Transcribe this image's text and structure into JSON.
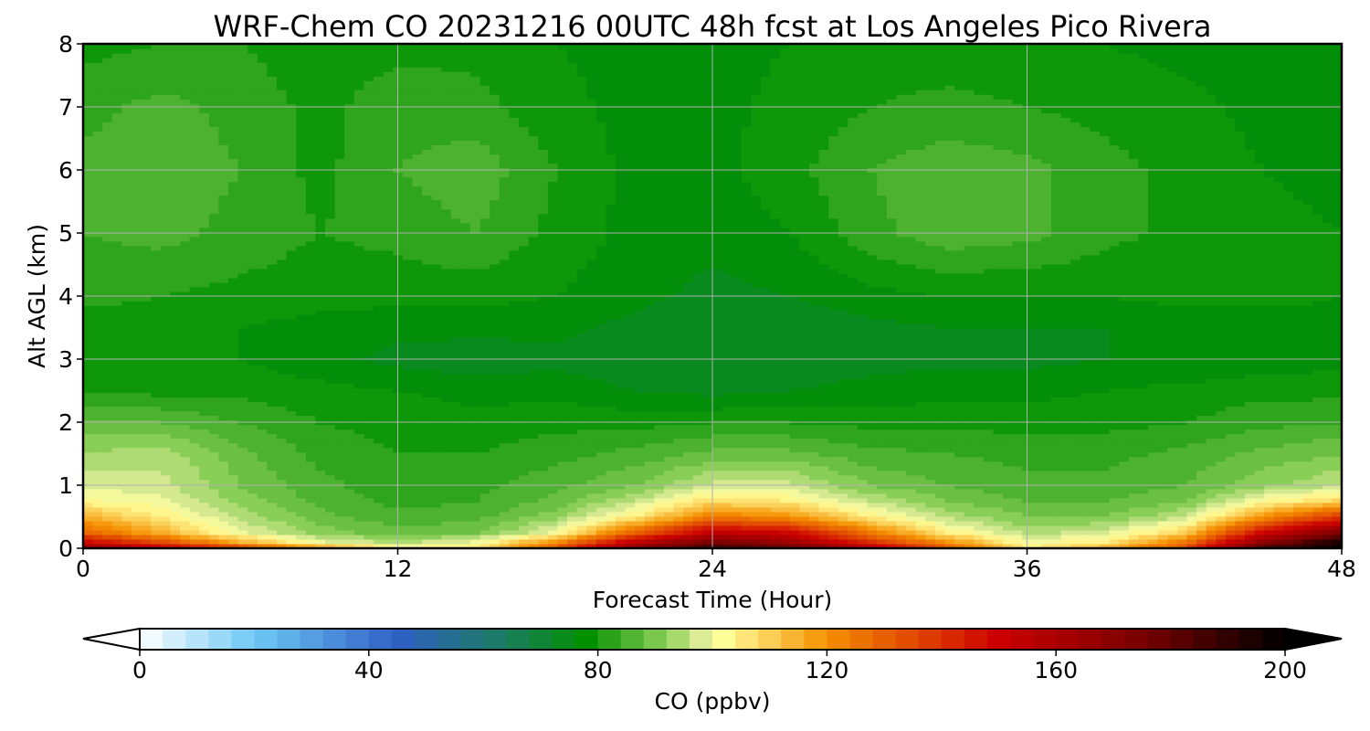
{
  "chart_data": {
    "type": "heatmap",
    "title": "WRF-Chem CO  20231216 00UTC 48h fcst at Los Angeles Pico Rivera",
    "xlabel": "Forecast Time (Hour)",
    "ylabel": "Alt AGL (km)",
    "xlim": [
      0,
      48
    ],
    "ylim": [
      0,
      8
    ],
    "xticks": [
      "0",
      "12",
      "24",
      "36",
      "48"
    ],
    "yticks": [
      "0",
      "1",
      "2",
      "3",
      "4",
      "5",
      "6",
      "7",
      "8"
    ],
    "grid": true,
    "colorbar": {
      "label": "CO  (ppbv)",
      "min": 0,
      "max": 200,
      "ticks": [
        "0",
        "40",
        "80",
        "120",
        "160",
        "200"
      ],
      "extend": "both",
      "stops": [
        {
          "value": 0,
          "color": "#ffffff"
        },
        {
          "value": 20,
          "color": "#6ec8f5"
        },
        {
          "value": 45,
          "color": "#2f5fc4"
        },
        {
          "value": 62,
          "color": "#1e7a6a"
        },
        {
          "value": 78,
          "color": "#009000"
        },
        {
          "value": 92,
          "color": "#8ed05a"
        },
        {
          "value": 99,
          "color": "#e8f0a0"
        },
        {
          "value": 102,
          "color": "#ffff99"
        },
        {
          "value": 120,
          "color": "#f59000"
        },
        {
          "value": 150,
          "color": "#cc0000"
        },
        {
          "value": 175,
          "color": "#780000"
        },
        {
          "value": 200,
          "color": "#000000"
        }
      ]
    },
    "x_hours": [
      0,
      3,
      6,
      9,
      12,
      15,
      18,
      21,
      24,
      27,
      30,
      33,
      36,
      39,
      42,
      45,
      48
    ],
    "z_km": [
      0,
      0.1,
      0.25,
      0.5,
      0.75,
      1,
      1.5,
      2,
      2.5,
      3,
      3.5,
      4,
      5,
      6,
      7,
      8
    ],
    "values": [
      [
        170,
        155,
        140,
        120,
        105,
        105,
        135,
        170,
        190,
        180,
        160,
        130,
        105,
        115,
        135,
        185,
        200
      ],
      [
        150,
        135,
        115,
        100,
        95,
        100,
        120,
        155,
        175,
        165,
        140,
        120,
        100,
        105,
        125,
        170,
        195
      ],
      [
        130,
        115,
        100,
        92,
        88,
        90,
        100,
        130,
        155,
        150,
        125,
        105,
        95,
        98,
        110,
        150,
        175
      ],
      [
        115,
        105,
        95,
        88,
        85,
        86,
        92,
        105,
        125,
        120,
        105,
        95,
        90,
        90,
        96,
        120,
        140
      ],
      [
        103,
        100,
        92,
        86,
        83,
        84,
        88,
        96,
        108,
        105,
        96,
        90,
        87,
        87,
        90,
        102,
        110
      ],
      [
        98,
        97,
        90,
        85,
        82,
        83,
        86,
        90,
        97,
        97,
        90,
        87,
        85,
        85,
        87,
        92,
        96
      ],
      [
        93,
        95,
        88,
        83,
        81,
        81,
        83,
        85,
        88,
        88,
        85,
        84,
        83,
        83,
        85,
        88,
        90
      ],
      [
        88,
        87,
        84,
        81,
        80,
        79,
        80,
        80,
        81,
        81,
        80,
        80,
        80,
        80,
        81,
        83,
        84
      ],
      [
        81,
        80,
        80,
        79,
        78,
        77,
        77,
        75,
        74,
        75,
        76,
        77,
        77,
        78,
        79,
        80,
        80
      ],
      [
        79,
        79,
        78,
        76,
        74,
        73,
        74,
        73,
        73,
        73,
        74,
        74,
        74,
        75,
        75,
        76,
        77
      ],
      [
        79,
        79,
        78,
        77,
        76,
        76,
        76,
        74,
        73,
        73,
        74,
        75,
        75,
        75,
        76,
        76,
        77
      ],
      [
        82,
        81,
        80,
        79,
        79,
        79,
        78,
        76,
        74,
        75,
        77,
        78,
        78,
        78,
        79,
        79,
        78
      ],
      [
        84,
        85,
        83,
        81,
        82,
        84,
        80,
        77,
        76,
        78,
        83,
        86,
        85,
        82,
        80,
        79,
        78
      ],
      [
        85,
        86,
        84,
        80,
        84,
        86,
        81,
        77,
        77,
        80,
        84,
        86,
        85,
        82,
        80,
        78,
        77
      ],
      [
        83,
        85,
        83,
        80,
        83,
        82,
        79,
        77,
        77,
        79,
        81,
        82,
        81,
        80,
        79,
        77,
        76
      ],
      [
        80,
        81,
        81,
        79,
        80,
        80,
        78,
        77,
        77,
        78,
        79,
        79,
        79,
        78,
        77,
        76,
        76
      ]
    ]
  }
}
